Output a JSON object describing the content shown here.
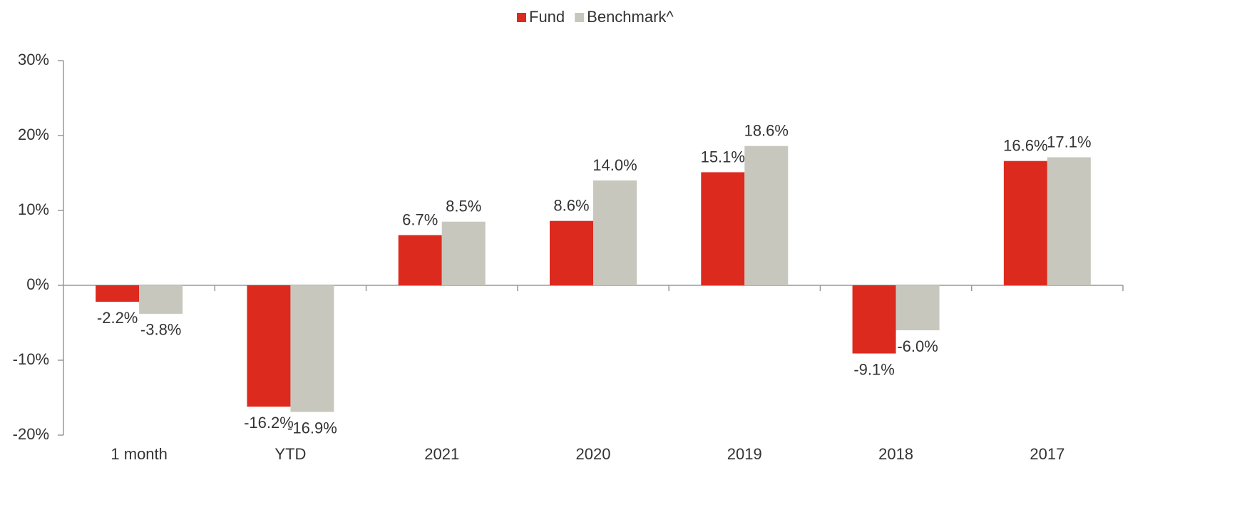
{
  "chart_data": {
    "type": "bar",
    "categories": [
      "1 month",
      "YTD",
      "2021",
      "2020",
      "2019",
      "2018",
      "2017"
    ],
    "series": [
      {
        "name": "Fund",
        "color": "#dc2a1e",
        "values": [
          -2.2,
          -16.2,
          6.7,
          8.6,
          15.1,
          -9.1,
          16.6
        ],
        "value_labels": [
          "-2.2%",
          "-16.2%",
          "6.7%",
          "8.6%",
          "15.1%",
          "-9.1%",
          "16.6%"
        ]
      },
      {
        "name": "Benchmark^",
        "color": "#c8c7bd",
        "values": [
          -3.8,
          -16.9,
          8.5,
          14.0,
          18.6,
          -6.0,
          17.1
        ],
        "value_labels": [
          "-3.8%",
          "-16.9%",
          "8.5%",
          "14.0%",
          "18.6%",
          "-6.0%",
          "17.1%"
        ]
      }
    ],
    "ylim": [
      -20,
      30
    ],
    "yticks": [
      {
        "value": -20,
        "label": "-20%"
      },
      {
        "value": -10,
        "label": "-10%"
      },
      {
        "value": 0,
        "label": "0%"
      },
      {
        "value": 10,
        "label": "10%"
      },
      {
        "value": 20,
        "label": "20%"
      },
      {
        "value": 30,
        "label": "30%"
      }
    ],
    "legend": "top"
  }
}
